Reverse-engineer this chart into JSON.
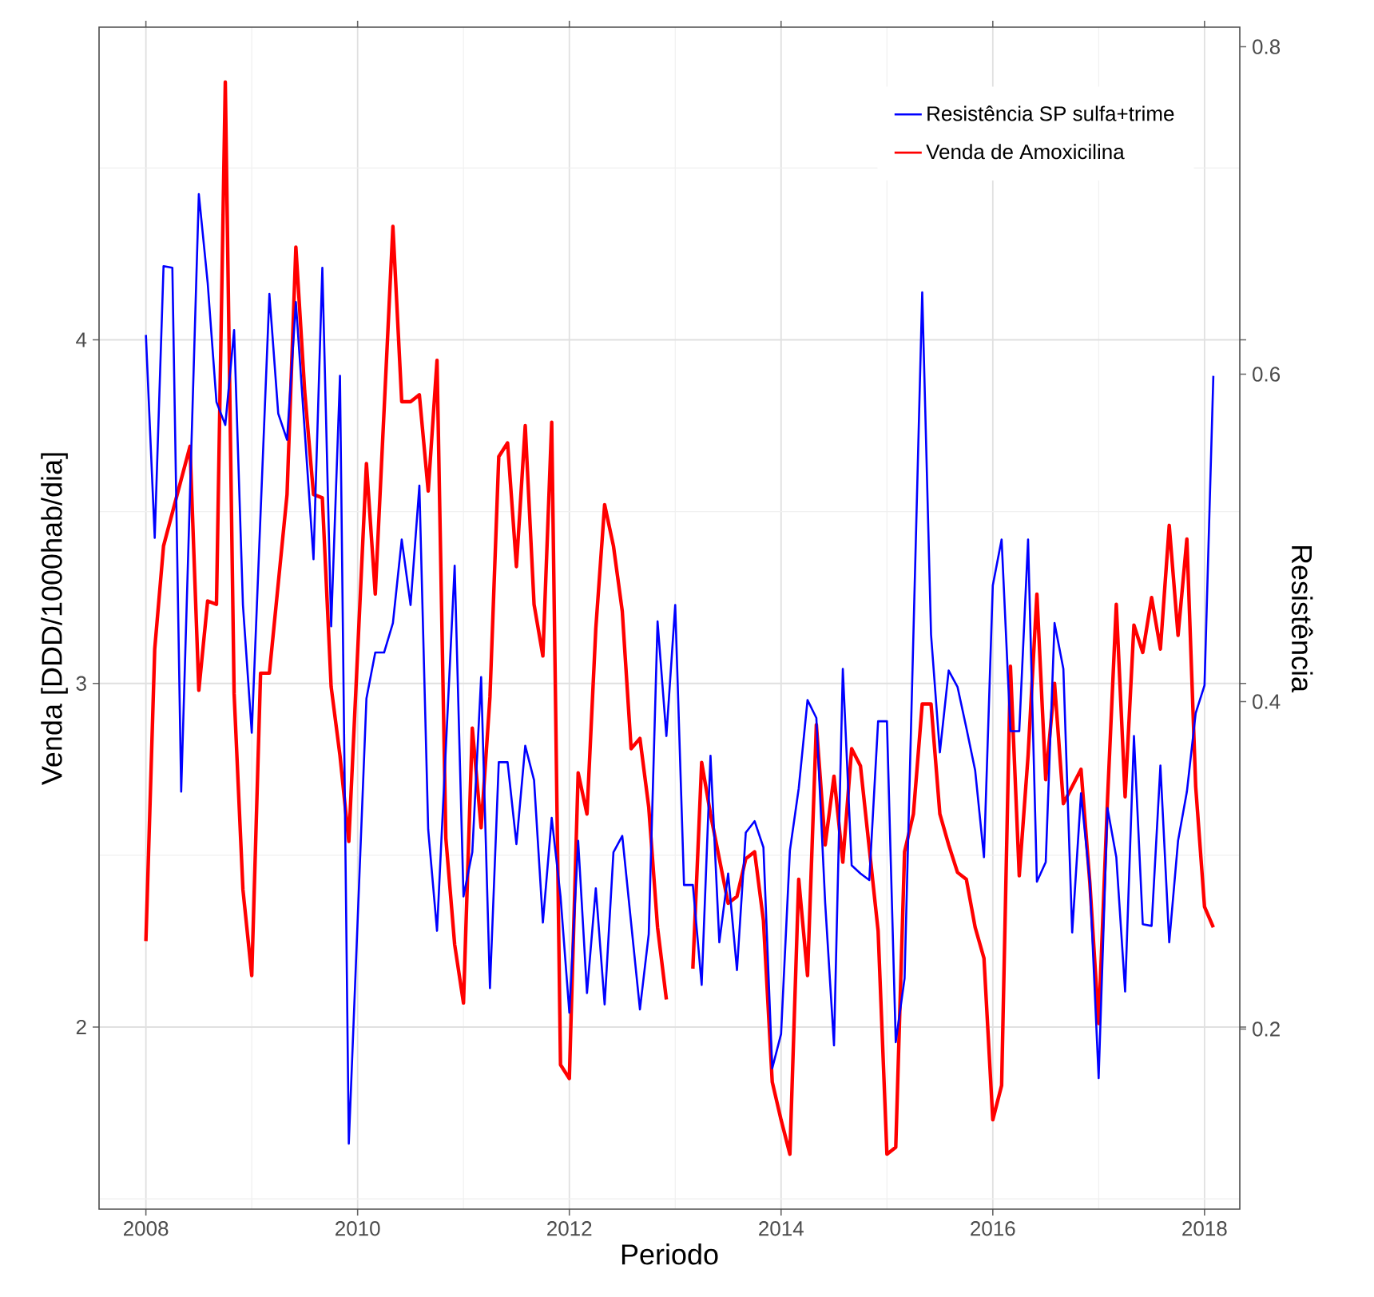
{
  "chart_data": {
    "type": "line",
    "xlabel": "Periodo",
    "ylabel": "Venda [DDD/1000hab/dia]",
    "y2label": "Resistência",
    "xlim": [
      "2007-07-22",
      "2018-05-01"
    ],
    "xticks": [
      "2008",
      "2010",
      "2012",
      "2014",
      "2016",
      "2018"
    ],
    "ylim": [
      1.47,
      4.91
    ],
    "yticks": [
      2,
      3,
      4
    ],
    "y2lim": [
      0.09,
      0.812
    ],
    "y2ticks": [
      0.2,
      0.4,
      0.6,
      0.8
    ],
    "grid": true,
    "legend": "top right",
    "series": [
      {
        "name": "Resistência SP sulfa+trime",
        "color": "#0000ff",
        "axis": "y2",
        "x": [
          "2008-01",
          "2008-02",
          "2008-03",
          "2008-04",
          "2008-05",
          "2008-07",
          "2008-08",
          "2008-09",
          "2008-10",
          "2008-11",
          "2008-12",
          "2009-01",
          "2009-03",
          "2009-04",
          "2009-05",
          "2009-06",
          "2009-08",
          "2009-09",
          "2009-10",
          "2009-11",
          "2009-12",
          "2010-02",
          "2010-03",
          "2010-04",
          "2010-05",
          "2010-06",
          "2010-07",
          "2010-08",
          "2010-09",
          "2010-10",
          "2010-12",
          "2011-01",
          "2011-02",
          "2011-03",
          "2011-04",
          "2011-05",
          "2011-06",
          "2011-07",
          "2011-08",
          "2011-09",
          "2011-10",
          "2011-11",
          "2011-12",
          "2012-01",
          "2012-02",
          "2012-03",
          "2012-04",
          "2012-05",
          "2012-06",
          "2012-07",
          "2012-08",
          "2012-09",
          "2012-10",
          "2012-11",
          "2012-12",
          "2013-01",
          "2013-02",
          "2013-03",
          "2013-04",
          "2013-05",
          "2013-06",
          "2013-07",
          "2013-08",
          "2013-09",
          "2013-10",
          "2013-11",
          "2013-12",
          "2014-01",
          "2014-02",
          "2014-03",
          "2014-04",
          "2014-05",
          "2014-06",
          "2014-07",
          "2014-08",
          "2014-09",
          "2014-10",
          "2014-11",
          "2014-12",
          "2015-01",
          "2015-02",
          "2015-03",
          "2015-05",
          "2015-06",
          "2015-07",
          "2015-08",
          "2015-09",
          "2015-10",
          "2015-11",
          "2015-12",
          "2016-01",
          "2016-02",
          "2016-03",
          "2016-04",
          "2016-05",
          "2016-06",
          "2016-07",
          "2016-08",
          "2016-09",
          "2016-10",
          "2016-11",
          "2016-12",
          "2017-01",
          "2017-02",
          "2017-03",
          "2017-04",
          "2017-05",
          "2017-06",
          "2017-07",
          "2017-08",
          "2017-09",
          "2017-10",
          "2017-11",
          "2017-12",
          "2018-01",
          "2018-02"
        ],
        "values": [
          0.624,
          0.5,
          0.666,
          0.665,
          0.345,
          0.71,
          0.656,
          0.583,
          0.569,
          0.627,
          0.459,
          0.381,
          0.649,
          0.576,
          0.56,
          0.644,
          0.487,
          0.665,
          0.446,
          0.599,
          0.13,
          0.402,
          0.43,
          0.43,
          0.448,
          0.499,
          0.459,
          0.532,
          0.322,
          0.26,
          0.483,
          0.281,
          0.308,
          0.415,
          0.225,
          0.363,
          0.363,
          0.313,
          0.373,
          0.352,
          0.265,
          0.329,
          0.281,
          0.21,
          0.315,
          0.222,
          0.286,
          0.215,
          0.308,
          0.318,
          0.265,
          0.212,
          0.258,
          0.449,
          0.379,
          0.459,
          0.288,
          0.288,
          0.227,
          0.367,
          0.253,
          0.295,
          0.236,
          0.32,
          0.327,
          0.311,
          0.176,
          0.197,
          0.309,
          0.347,
          0.401,
          0.39,
          0.277,
          0.19,
          0.42,
          0.3,
          0.295,
          0.291,
          0.388,
          0.388,
          0.192,
          0.231,
          0.65,
          0.441,
          0.369,
          0.419,
          0.409,
          0.384,
          0.358,
          0.305,
          0.471,
          0.499,
          0.382,
          0.382,
          0.499,
          0.29,
          0.302,
          0.448,
          0.42,
          0.259,
          0.344,
          0.29,
          0.17,
          0.335,
          0.305,
          0.223,
          0.379,
          0.264,
          0.263,
          0.361,
          0.253,
          0.315,
          0.345,
          0.393,
          0.41,
          0.599
        ]
      },
      {
        "name": "Venda de Amoxicilina",
        "color": "#ff0000",
        "x": [
          "2008-01",
          "2008-02",
          "2008-03",
          "2008-06",
          "2008-07",
          "2008-08",
          "2008-09",
          "2008-10",
          "2008-11",
          "2008-12",
          "2009-01",
          "2009-02",
          "2009-03",
          "2009-05",
          "2009-06",
          "2009-07",
          "2009-08",
          "2009-09",
          "2009-10",
          "2009-11",
          "2009-12",
          "2010-02",
          "2010-03",
          "2010-05",
          "2010-06",
          "2010-07",
          "2010-08",
          "2010-09",
          "2010-10",
          "2010-11",
          "2010-12",
          "2011-01",
          "2011-02",
          "2011-03",
          "2011-04",
          "2011-05",
          "2011-06",
          "2011-07",
          "2011-08",
          "2011-09",
          "2011-10",
          "2011-11",
          "2011-12",
          "2012-01",
          "2012-02",
          "2012-03",
          "2012-04",
          "2012-05",
          "2012-06",
          "2012-07",
          "2012-08",
          "2012-09",
          "2012-10",
          "2012-11",
          "2012-12",
          "2013-01",
          "2013-02",
          "2013-03",
          "2013-04",
          "2013-05",
          "2013-06",
          "2013-07",
          "2013-08",
          "2013-09",
          "2013-10",
          "2013-11",
          "2013-12",
          "2014-01",
          "2014-02",
          "2014-03",
          "2014-04",
          "2014-05",
          "2014-06",
          "2014-07",
          "2014-08",
          "2014-09",
          "2014-10",
          "2014-11",
          "2014-12",
          "2015-01",
          "2015-02",
          "2015-03",
          "2015-04",
          "2015-05",
          "2015-06",
          "2015-07",
          "2015-08",
          "2015-09",
          "2015-10",
          "2015-11",
          "2015-12",
          "2016-01",
          "2016-02",
          "2016-03",
          "2016-04",
          "2016-05",
          "2016-06",
          "2016-07",
          "2016-08",
          "2016-09",
          "2016-10",
          "2016-11",
          "2016-12",
          "2017-01",
          "2017-02",
          "2017-03",
          "2017-04",
          "2017-05",
          "2017-06",
          "2017-07",
          "2017-08",
          "2017-09",
          "2017-10",
          "2017-11",
          "2017-12",
          "2018-01",
          "2018-02"
        ],
        "values": [
          2.25,
          3.1,
          3.4,
          3.69,
          2.98,
          3.24,
          3.23,
          4.75,
          2.97,
          2.4,
          2.15,
          3.03,
          3.03,
          3.55,
          4.27,
          3.85,
          3.55,
          3.54,
          2.99,
          2.79,
          2.54,
          3.64,
          3.26,
          4.33,
          3.82,
          3.82,
          3.84,
          3.56,
          3.94,
          2.55,
          2.24,
          2.07,
          2.87,
          2.58,
          2.96,
          3.66,
          3.7,
          3.34,
          3.75,
          3.23,
          3.08,
          3.76,
          1.89,
          1.85,
          2.74,
          2.62,
          3.16,
          3.52,
          3.4,
          3.21,
          2.81,
          2.84,
          2.64,
          2.29,
          2.08,
          null,
          null,
          2.17,
          2.77,
          2.62,
          2.49,
          2.36,
          2.38,
          2.49,
          2.51,
          2.31,
          1.84,
          1.73,
          1.63,
          2.43,
          2.15,
          2.88,
          2.53,
          2.73,
          2.48,
          2.81,
          2.76,
          2.52,
          2.28,
          1.63,
          1.65,
          2.51,
          2.62,
          2.94,
          2.94,
          2.62,
          2.53,
          2.45,
          2.43,
          2.29,
          2.2,
          1.73,
          1.83,
          3.05,
          2.44,
          2.79,
          3.26,
          2.72,
          3.0,
          2.65,
          2.7,
          2.75,
          2.42,
          2.01,
          2.66,
          3.23,
          2.67,
          3.17,
          3.09,
          3.25,
          3.1,
          3.46,
          3.14,
          3.42,
          2.7,
          2.35,
          2.29
        ]
      }
    ]
  }
}
